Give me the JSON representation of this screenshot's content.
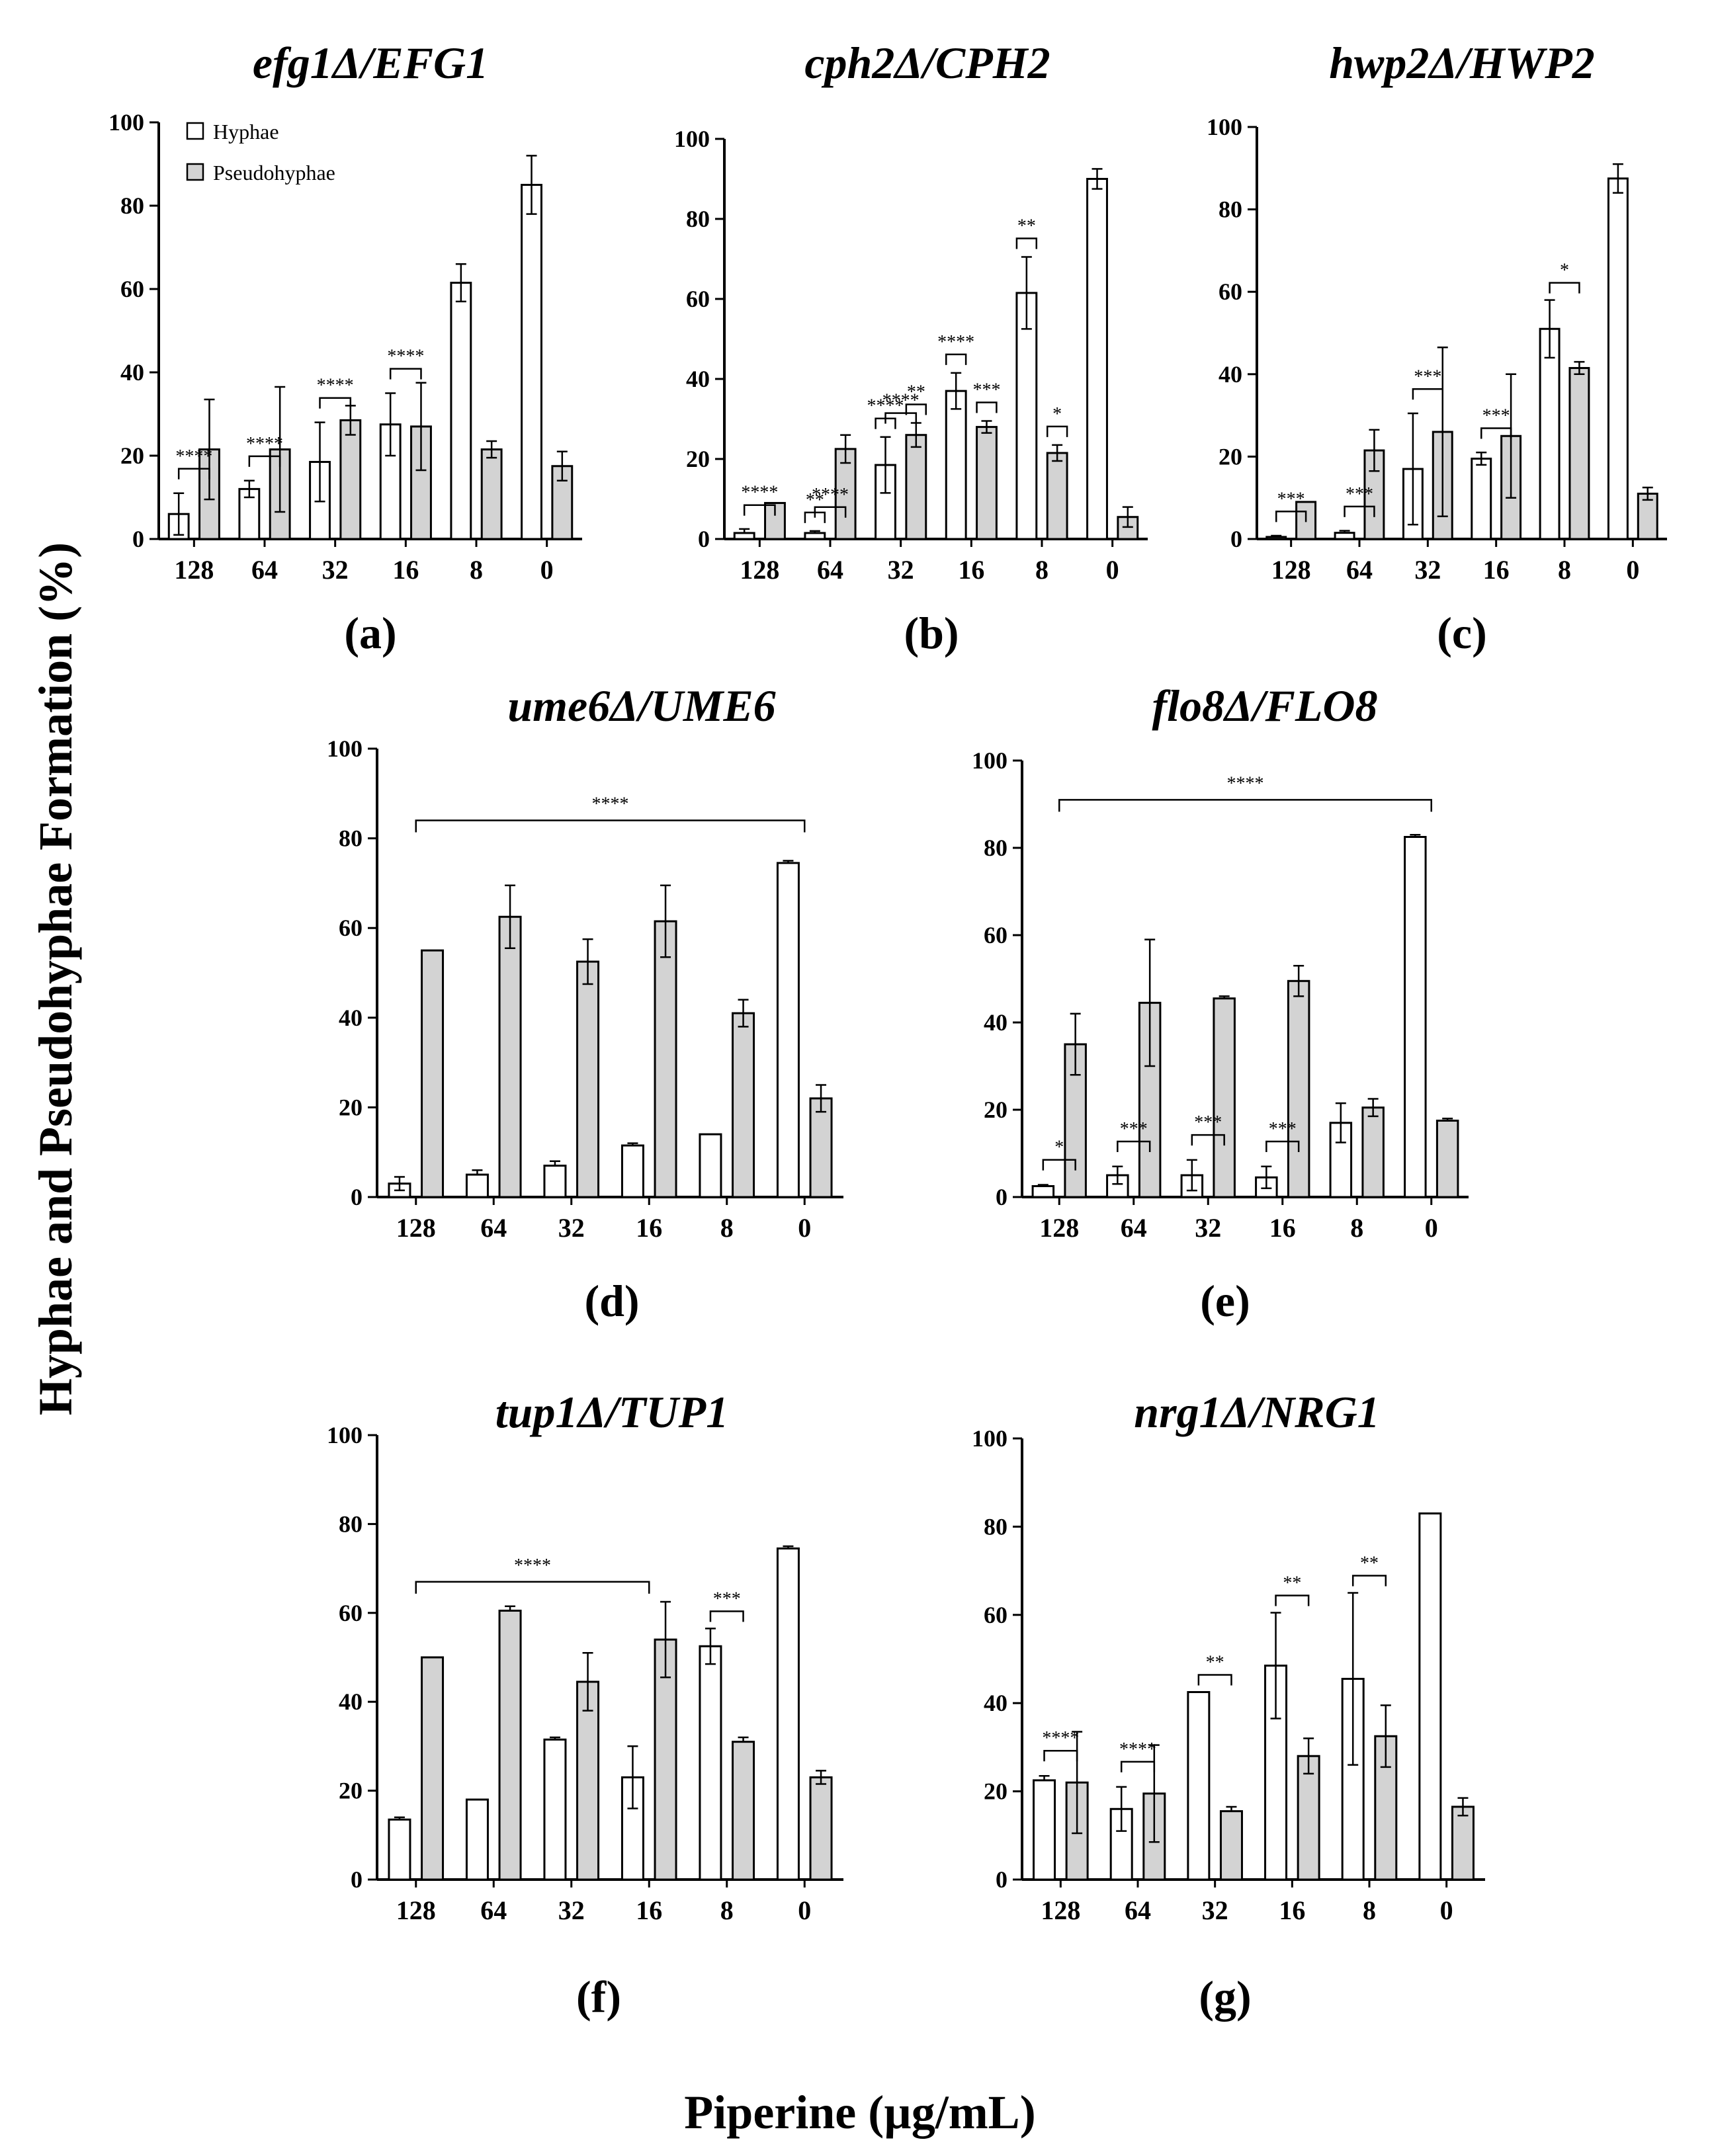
{
  "figure": {
    "ylabel": "Hyphae and Pseudohyphae Formation (%)",
    "xlabel": "Piperine (µg/mL)",
    "legend": {
      "hyphae": "Hyphae",
      "pseudohyphae": "Pseudohyphae"
    },
    "colors": {
      "hyphae": "#ffffff",
      "pseudohyphae": "#d3d3d3",
      "stroke": "#000000"
    }
  },
  "chart_data": [
    {
      "id": "a",
      "type": "bar",
      "title": "efg1Δ/EFG1",
      "label": "(a)",
      "categories": [
        "128",
        "64",
        "32",
        "16",
        "8",
        "0"
      ],
      "ylim": [
        0,
        100
      ],
      "yticks": [
        0,
        20,
        40,
        60,
        80,
        100
      ],
      "series": [
        {
          "name": "Hyphae",
          "values": [
            6,
            12,
            18.5,
            27.5,
            61.5,
            85
          ],
          "errors": [
            5,
            2,
            9.5,
            7.5,
            4.5,
            7
          ]
        },
        {
          "name": "Pseudohyphae",
          "values": [
            21.5,
            21.5,
            28.5,
            27,
            21.5,
            17.5
          ],
          "errors": [
            12,
            15,
            3.5,
            10.5,
            2,
            3.5
          ]
        }
      ],
      "significance": [
        {
          "type": "pair",
          "category": 0,
          "label": "****"
        },
        {
          "type": "pair",
          "category": 1,
          "label": "****"
        },
        {
          "type": "pair",
          "category": 2,
          "label": "****"
        },
        {
          "type": "pair",
          "category": 3,
          "label": "****"
        }
      ],
      "legend": true
    },
    {
      "id": "b",
      "type": "bar",
      "title": "cph2Δ/CPH2",
      "label": "(b)",
      "categories": [
        "128",
        "64",
        "32",
        "16",
        "8",
        "0"
      ],
      "ylim": [
        0,
        100
      ],
      "yticks": [
        0,
        20,
        40,
        60,
        80,
        100
      ],
      "series": [
        {
          "name": "Hyphae",
          "values": [
            1.5,
            1.5,
            18.5,
            37,
            61.5,
            90
          ],
          "errors": [
            1,
            0.5,
            7,
            4.5,
            9,
            2.5
          ]
        },
        {
          "name": "Pseudohyphae",
          "values": [
            9,
            22.5,
            26,
            28,
            21.5,
            5.5
          ],
          "errors": [
            0,
            3.5,
            3,
            1.5,
            2,
            2.5
          ]
        }
      ],
      "significance": [
        {
          "type": "pair",
          "category": 0,
          "label": "****"
        },
        {
          "type": "pair",
          "category": 1,
          "label": "****"
        },
        {
          "type": "left",
          "category": 1,
          "label": "**"
        },
        {
          "type": "left",
          "category": 2,
          "label": "****"
        },
        {
          "type": "pair",
          "category": 2,
          "label": "****"
        },
        {
          "type": "right",
          "category": 2,
          "label": "**"
        },
        {
          "type": "left",
          "category": 3,
          "label": "****"
        },
        {
          "type": "right",
          "category": 3,
          "label": "***"
        },
        {
          "type": "left",
          "category": 4,
          "label": "**"
        },
        {
          "type": "right",
          "category": 4,
          "label": "*"
        }
      ]
    },
    {
      "id": "c",
      "type": "bar",
      "title": "hwp2Δ/HWP2",
      "label": "(c)",
      "categories": [
        "128",
        "64",
        "32",
        "16",
        "8",
        "0"
      ],
      "ylim": [
        0,
        100
      ],
      "yticks": [
        0,
        20,
        40,
        60,
        80,
        100
      ],
      "series": [
        {
          "name": "Hyphae",
          "values": [
            0.5,
            1.5,
            17,
            19.5,
            51,
            87.5
          ],
          "errors": [
            0.3,
            0.5,
            13.5,
            1.5,
            7,
            3.5
          ]
        },
        {
          "name": "Pseudohyphae",
          "values": [
            9,
            21.5,
            26,
            25,
            41.5,
            11
          ],
          "errors": [
            0,
            5,
            20.5,
            15,
            1.5,
            1.5
          ]
        }
      ],
      "significance": [
        {
          "type": "pair",
          "category": 0,
          "label": "***"
        },
        {
          "type": "pair",
          "category": 1,
          "label": "***"
        },
        {
          "type": "pair",
          "category": 2,
          "label": "***"
        },
        {
          "type": "pair",
          "category": 3,
          "label": "***"
        },
        {
          "type": "pair",
          "category": 4,
          "label": "*"
        }
      ]
    },
    {
      "id": "d",
      "type": "bar",
      "title": "ume6Δ/UME6",
      "label": "(d)",
      "categories": [
        "128",
        "64",
        "32",
        "16",
        "8",
        "0"
      ],
      "ylim": [
        0,
        100
      ],
      "yticks": [
        0,
        20,
        40,
        60,
        80,
        100
      ],
      "series": [
        {
          "name": "Hyphae",
          "values": [
            3,
            5,
            7,
            11.5,
            14,
            74.5
          ],
          "errors": [
            1.5,
            1,
            1,
            0.5,
            0,
            0.5
          ]
        },
        {
          "name": "Pseudohyphae",
          "values": [
            55,
            62.5,
            52.5,
            61.5,
            41,
            22
          ],
          "errors": [
            0,
            7,
            5,
            8,
            3,
            3
          ]
        }
      ],
      "significance": [
        {
          "type": "span",
          "from": 0,
          "to": 5,
          "label": "****",
          "value": 84
        }
      ]
    },
    {
      "id": "e",
      "type": "bar",
      "title": "flo8Δ/FLO8",
      "label": "(e)",
      "categories": [
        "128",
        "64",
        "32",
        "16",
        "8",
        "0"
      ],
      "ylim": [
        0,
        100
      ],
      "yticks": [
        0,
        20,
        40,
        60,
        80,
        100
      ],
      "series": [
        {
          "name": "Hyphae",
          "values": [
            2.5,
            5,
            5,
            4.5,
            17,
            82.5
          ],
          "errors": [
            0.3,
            2,
            3.5,
            2.5,
            4.5,
            0.5
          ]
        },
        {
          "name": "Pseudohyphae",
          "values": [
            35,
            44.5,
            45.5,
            49.5,
            20.5,
            17.5
          ],
          "errors": [
            7,
            14.5,
            0.5,
            3.5,
            2,
            0.5
          ]
        }
      ],
      "significance": [
        {
          "type": "span",
          "from": 0,
          "to": 5,
          "label": "****",
          "value": 91
        },
        {
          "type": "pair",
          "category": 0,
          "label": "*"
        },
        {
          "type": "pair",
          "category": 1,
          "label": "***"
        },
        {
          "type": "pair",
          "category": 2,
          "label": "***"
        },
        {
          "type": "pair",
          "category": 3,
          "label": "***"
        }
      ]
    },
    {
      "id": "f",
      "type": "bar",
      "title": "tup1Δ/TUP1",
      "label": "(f)",
      "categories": [
        "128",
        "64",
        "32",
        "16",
        "8",
        "0"
      ],
      "ylim": [
        0,
        100
      ],
      "yticks": [
        0,
        20,
        40,
        60,
        80,
        100
      ],
      "series": [
        {
          "name": "Hyphae",
          "values": [
            13.5,
            18,
            31.5,
            23,
            52.5,
            74.5
          ],
          "errors": [
            0.5,
            0,
            0.5,
            7,
            4,
            0.5
          ]
        },
        {
          "name": "Pseudohyphae",
          "values": [
            50,
            60.5,
            44.5,
            54,
            31,
            23
          ],
          "errors": [
            0,
            1,
            6.5,
            8.5,
            1,
            1.5
          ]
        }
      ],
      "significance": [
        {
          "type": "span",
          "from": 0,
          "to": 3,
          "label": "****",
          "value": 67
        },
        {
          "type": "pair",
          "category": 4,
          "label": "***"
        }
      ]
    },
    {
      "id": "g",
      "type": "bar",
      "title": "nrg1Δ/NRG1",
      "label": "(g)",
      "categories": [
        "128",
        "64",
        "32",
        "16",
        "8",
        "0"
      ],
      "ylim": [
        0,
        100
      ],
      "yticks": [
        0,
        20,
        40,
        60,
        80,
        100
      ],
      "series": [
        {
          "name": "Hyphae",
          "values": [
            22.5,
            16,
            42.5,
            48.5,
            45.5,
            83
          ],
          "errors": [
            1,
            5,
            0,
            12,
            19.5,
            0
          ]
        },
        {
          "name": "Pseudohyphae",
          "values": [
            22,
            19.5,
            15.5,
            28,
            32.5,
            16.5
          ],
          "errors": [
            11.5,
            11,
            1,
            4,
            7,
            2
          ]
        }
      ],
      "significance": [
        {
          "type": "pair",
          "category": 0,
          "label": "****"
        },
        {
          "type": "pair",
          "category": 1,
          "label": "****"
        },
        {
          "type": "pair",
          "category": 2,
          "label": "**"
        },
        {
          "type": "pair",
          "category": 3,
          "label": "**"
        },
        {
          "type": "pair",
          "category": 4,
          "label": "**"
        }
      ]
    }
  ]
}
